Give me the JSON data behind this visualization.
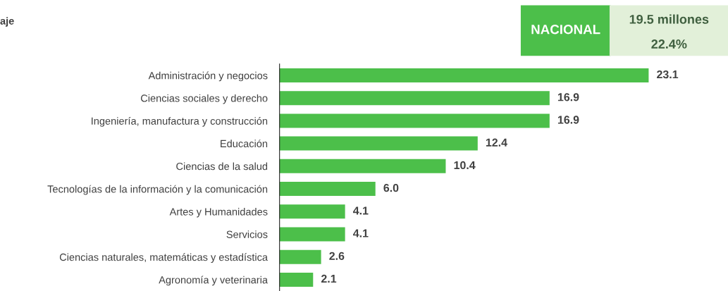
{
  "chart_data": {
    "type": "bar",
    "orientation": "horizontal",
    "categories": [
      "Administración y negocios",
      "Ciencias sociales y derecho",
      "Ingeniería, manufactura y construcción",
      "Educación",
      "Ciencias de la salud",
      "Tecnologías de la información y la comunicación",
      "Artes y Humanidades",
      "Servicios",
      "Ciencias naturales, matemáticas y estadística",
      "Agronomía y veterinaria"
    ],
    "values": [
      23.1,
      16.9,
      16.9,
      12.4,
      10.4,
      6.0,
      4.1,
      4.1,
      2.6,
      2.1
    ],
    "value_labels": [
      "23.1",
      "16.9",
      "16.9",
      "12.4",
      "10.4",
      "6.0",
      "4.1",
      "4.1",
      "2.6",
      "2.1"
    ],
    "color": "#4cbf4a",
    "grid": false,
    "legend": false,
    "annotations": [
      "aje",
      "NACIONAL",
      "19.5 millones",
      "22.4%"
    ]
  }
}
